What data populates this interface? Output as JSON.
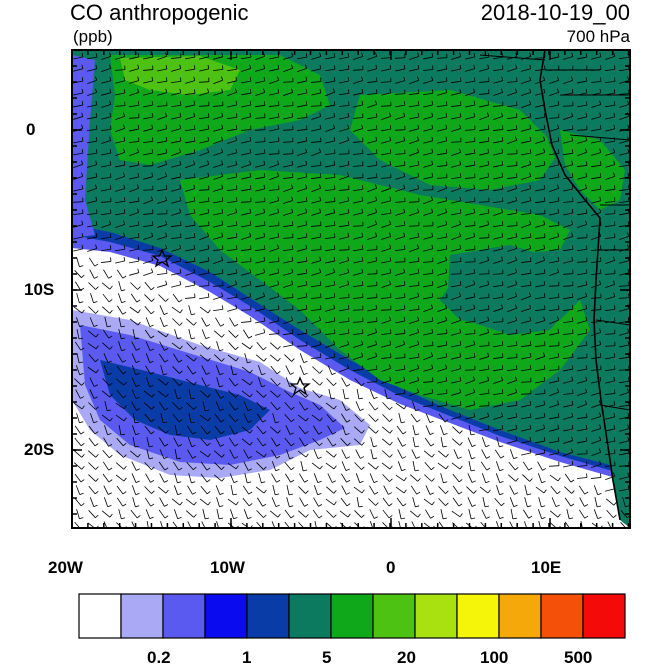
{
  "header": {
    "variable": "CO anthropogenic",
    "units": "(ppb)",
    "datetime": "2018-10-19_00",
    "level": "700 hPa"
  },
  "axes": {
    "x_ticks": [
      "20W",
      "10W",
      "0",
      "10E"
    ],
    "y_ticks": [
      "0",
      "10S",
      "20S"
    ]
  },
  "colorbar": {
    "colors": [
      "#ffffff",
      "#a9a9f5",
      "#5a5af0",
      "#0b0bf0",
      "#0a3ca8",
      "#0b7a5e",
      "#0fa81a",
      "#4ec212",
      "#a8e010",
      "#f5f50a",
      "#f5a80a",
      "#f5500a",
      "#f50a0a"
    ],
    "labels": [
      "0.2",
      "1",
      "5",
      "20",
      "100",
      "500"
    ]
  },
  "markers": [
    "star",
    "star"
  ]
}
